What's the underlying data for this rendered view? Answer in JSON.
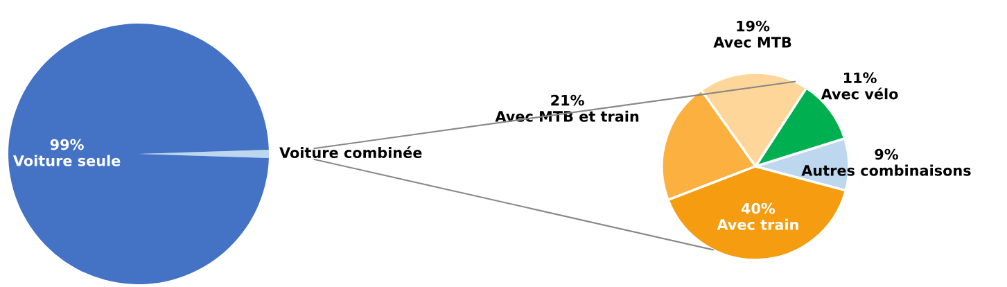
{
  "chart_data": [
    {
      "type": "pie",
      "categories": [
        "Voiture combinée",
        "Voiture seule"
      ],
      "values": [
        1,
        99
      ],
      "colors": [
        "#bdd7ee",
        "#4472c4"
      ],
      "value_labels": [
        null,
        "99%"
      ]
    },
    {
      "type": "pie",
      "categories": [
        "Autres combinaisons",
        "Avec vélo",
        "Avec MTB",
        "Avec MTB et train",
        "Avec train"
      ],
      "values": [
        9,
        11,
        19,
        21,
        40
      ],
      "colors": [
        "#bdd7ee",
        "#00b050",
        "#ffd699",
        "#fbb040",
        "#f59c10"
      ],
      "value_labels": [
        "9%",
        "11%",
        "19%",
        "21%",
        "40%"
      ]
    }
  ]
}
